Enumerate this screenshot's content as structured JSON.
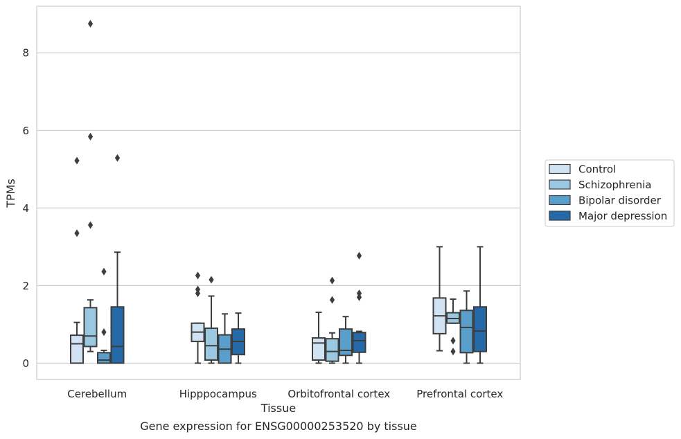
{
  "caption": "Gene expression for ENSG00000253520 by tissue",
  "chart_data": {
    "type": "boxplot",
    "xlabel": "Tissue",
    "ylabel": "TPMs",
    "ylim": [
      -0.42,
      9.2
    ],
    "yticks": [
      0,
      2,
      4,
      6,
      8
    ],
    "grid": "horizontal",
    "legend_position": "right",
    "categories": [
      "Cerebellum",
      "Hipppocampus",
      "Orbitofrontal cortex",
      "Prefrontal cortex"
    ],
    "series": [
      {
        "name": "Control",
        "color": "#d1e2f2",
        "boxes": [
          {
            "min": 0.0,
            "q1": 0.0,
            "median": 0.5,
            "q3": 0.72,
            "max": 1.05,
            "outliers": [
              3.35,
              5.22
            ]
          },
          {
            "min": 0.0,
            "q1": 0.56,
            "median": 0.8,
            "q3": 1.03,
            "max": 1.03,
            "outliers": [
              1.8,
              1.9,
              2.26
            ]
          },
          {
            "min": 0.0,
            "q1": 0.08,
            "median": 0.52,
            "q3": 0.65,
            "max": 1.31,
            "outliers": []
          },
          {
            "min": 0.32,
            "q1": 0.76,
            "median": 1.22,
            "q3": 1.68,
            "max": 3.0,
            "outliers": []
          }
        ]
      },
      {
        "name": "Schizophrenia",
        "color": "#9ac8e0",
        "boxes": [
          {
            "min": 0.3,
            "q1": 0.43,
            "median": 0.7,
            "q3": 1.43,
            "max": 1.63,
            "outliers": [
              3.56,
              5.84,
              8.75
            ]
          },
          {
            "min": 0.0,
            "q1": 0.08,
            "median": 0.45,
            "q3": 0.9,
            "max": 1.73,
            "outliers": [
              2.15
            ]
          },
          {
            "min": 0.0,
            "q1": 0.05,
            "median": 0.3,
            "q3": 0.63,
            "max": 0.78,
            "outliers": [
              1.63,
              2.13
            ]
          },
          {
            "min": 1.03,
            "q1": 1.03,
            "median": 1.15,
            "q3": 1.3,
            "max": 1.65,
            "outliers": [
              0.3,
              0.58
            ]
          }
        ]
      },
      {
        "name": "Bipolar disorder",
        "color": "#5a9ecc",
        "boxes": [
          {
            "min": 0.0,
            "q1": 0.0,
            "median": 0.08,
            "q3": 0.27,
            "max": 0.33,
            "outliers": [
              0.8,
              2.36
            ]
          },
          {
            "min": 0.0,
            "q1": 0.0,
            "median": 0.36,
            "q3": 0.73,
            "max": 1.27,
            "outliers": []
          },
          {
            "min": 0.0,
            "q1": 0.2,
            "median": 0.33,
            "q3": 0.88,
            "max": 1.2,
            "outliers": []
          },
          {
            "min": 0.0,
            "q1": 0.27,
            "median": 0.92,
            "q3": 1.36,
            "max": 1.86,
            "outliers": []
          }
        ]
      },
      {
        "name": "Major depression",
        "color": "#2669a8",
        "boxes": [
          {
            "min": 0.0,
            "q1": 0.0,
            "median": 0.43,
            "q3": 1.45,
            "max": 2.86,
            "outliers": [
              5.29
            ]
          },
          {
            "min": 0.0,
            "q1": 0.22,
            "median": 0.56,
            "q3": 0.88,
            "max": 1.29,
            "outliers": []
          },
          {
            "min": 0.0,
            "q1": 0.28,
            "median": 0.58,
            "q3": 0.79,
            "max": 0.82,
            "outliers": [
              1.7,
              1.8,
              2.77
            ]
          },
          {
            "min": 0.0,
            "q1": 0.3,
            "median": 0.83,
            "q3": 1.45,
            "max": 3.0,
            "outliers": []
          }
        ]
      }
    ]
  }
}
